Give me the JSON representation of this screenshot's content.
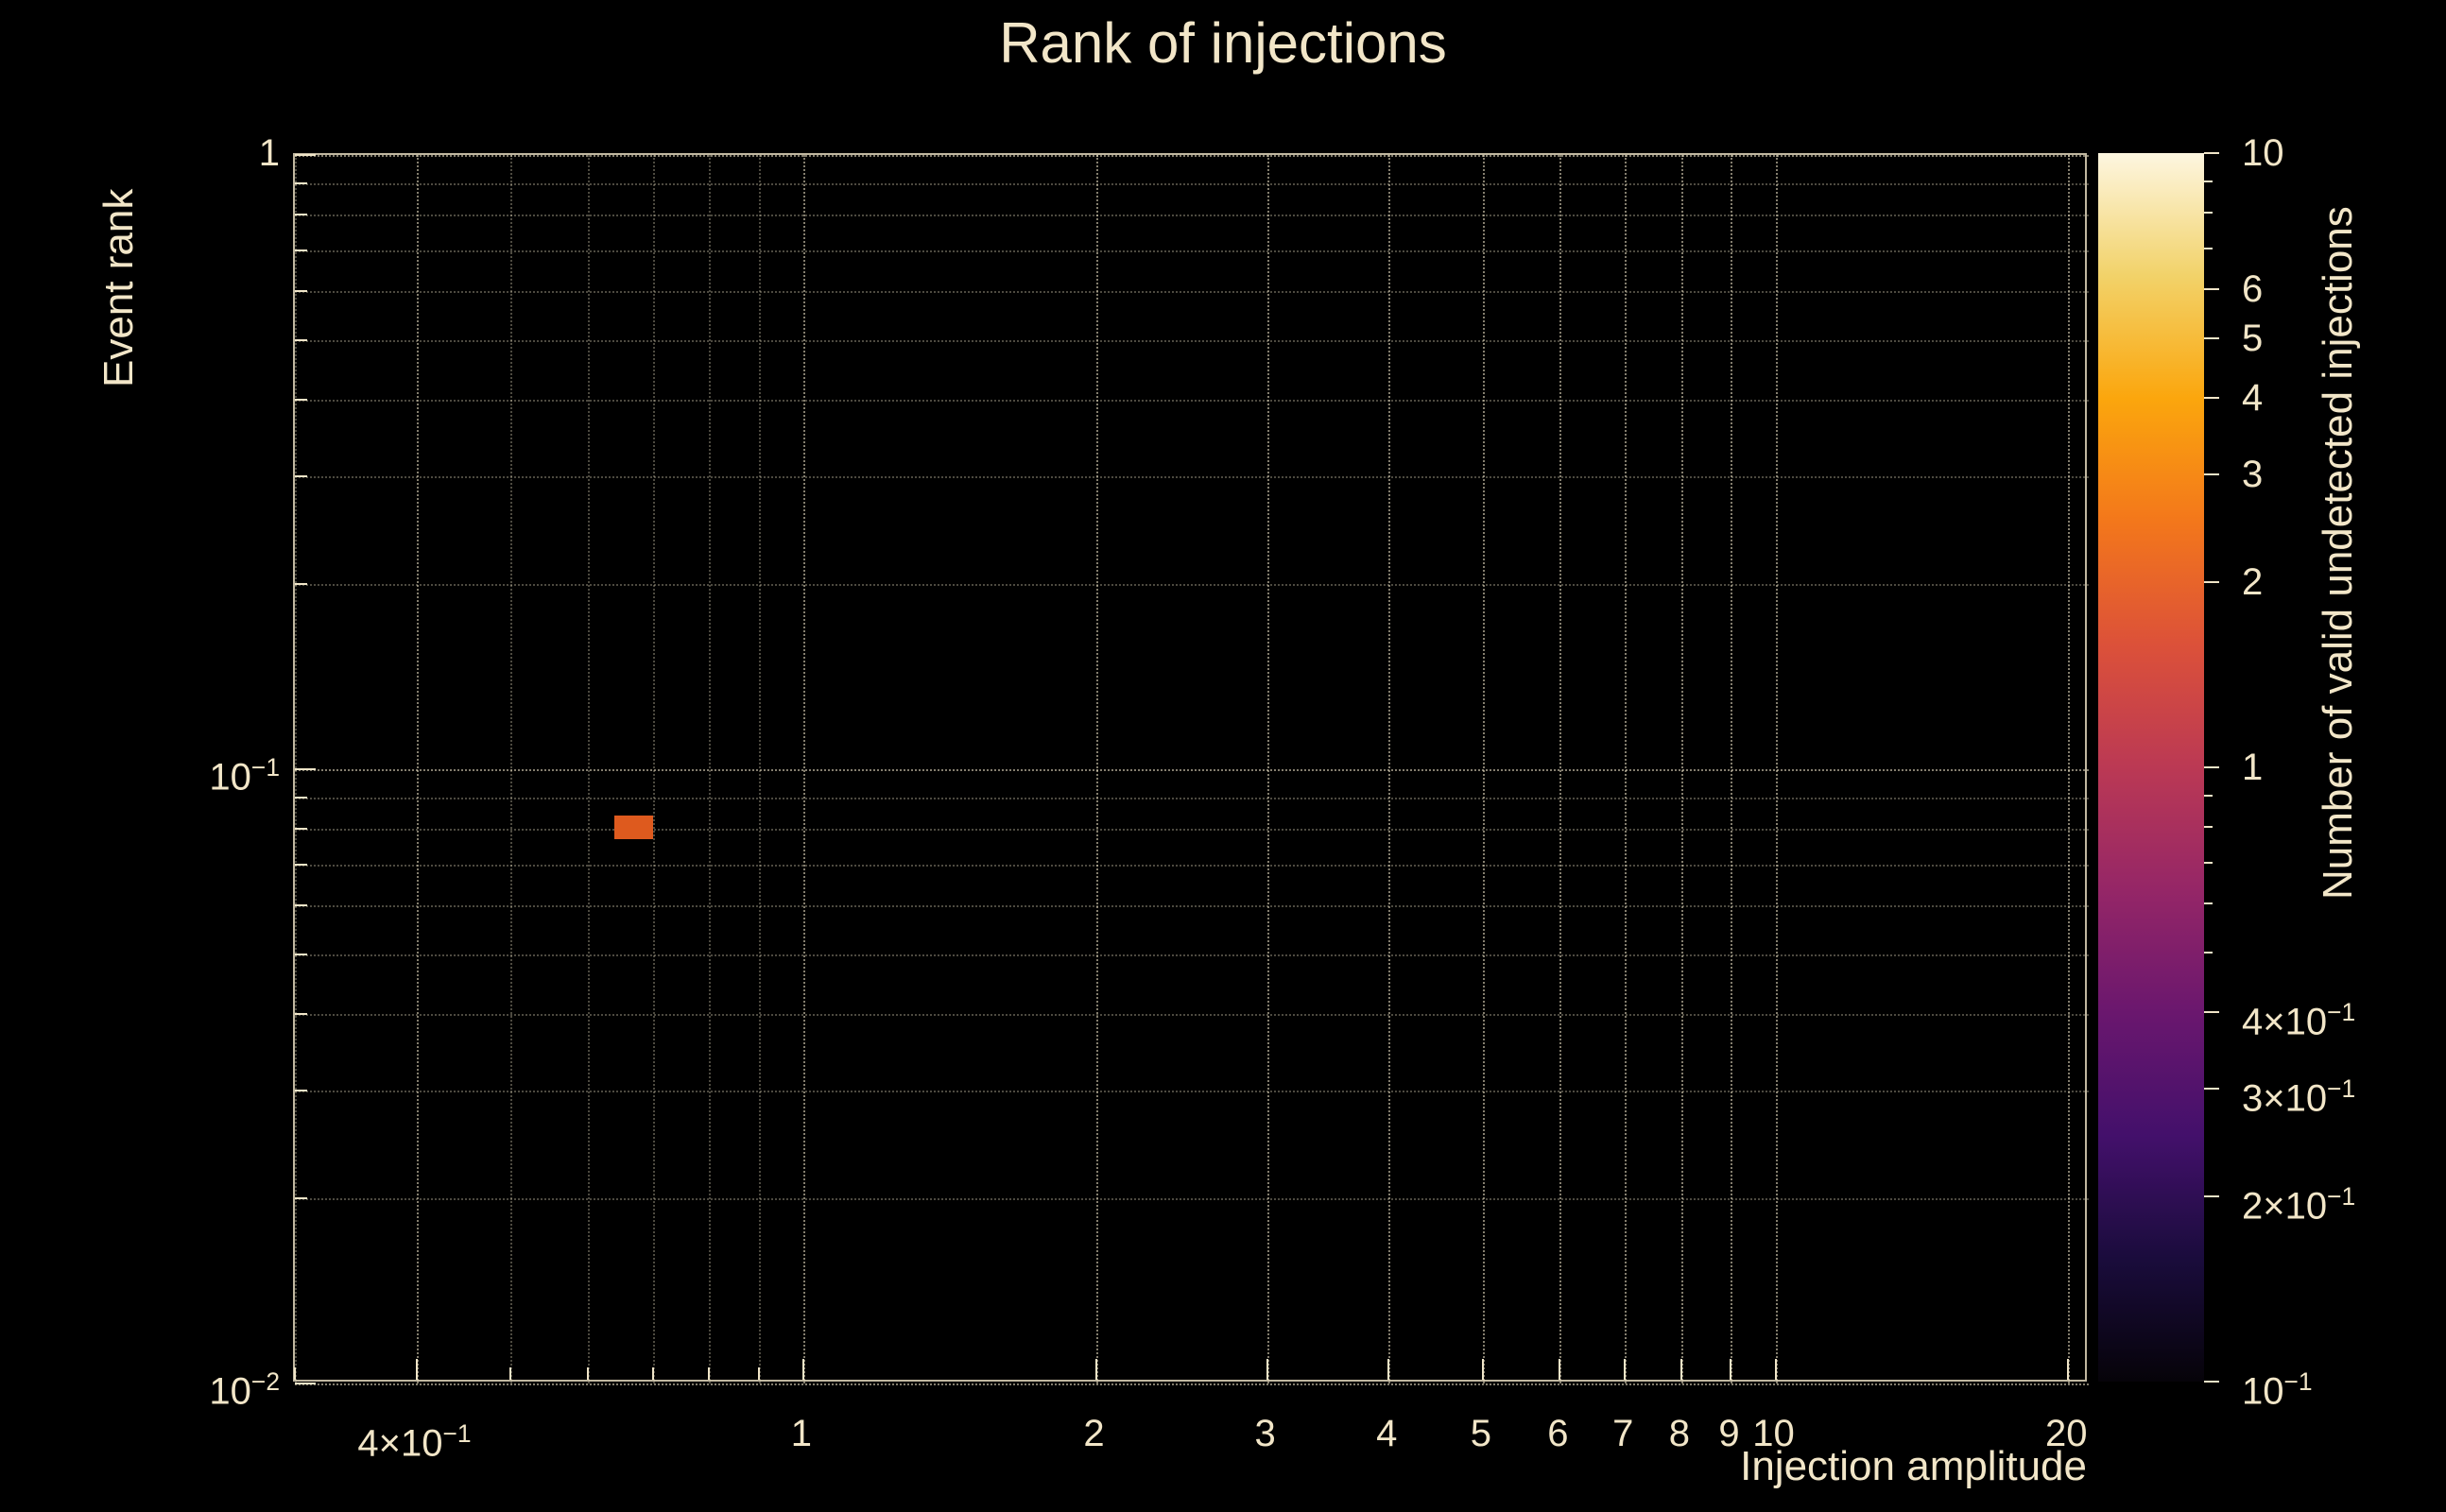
{
  "page": {
    "background": "#000000",
    "foreground": "#f2e6c8"
  },
  "chart_data": {
    "type": "heatmap",
    "title": "Rank of injections",
    "xlabel": "Injection amplitude",
    "ylabel": "Event rank",
    "colorbar_label": "Number of valid undetected injections",
    "xscale": "log",
    "yscale": "log",
    "zscale": "log",
    "xlim": [
      0.3,
      21
    ],
    "ylim": [
      0.01,
      1
    ],
    "zlim": [
      0.1,
      10
    ],
    "grid": true,
    "axis_color": "#f0e5c8",
    "grid_color_major": "rgba(240,229,200,0.55)",
    "grid_color_minor": "rgba(240,229,200,0.32)",
    "x_ticks": [
      {
        "v": 0.4,
        "t": "4×10",
        "sup": "−1"
      },
      {
        "v": 1,
        "t": "1"
      },
      {
        "v": 2,
        "t": "2"
      },
      {
        "v": 3,
        "t": "3"
      },
      {
        "v": 4,
        "t": "4"
      },
      {
        "v": 5,
        "t": "5"
      },
      {
        "v": 6,
        "t": "6"
      },
      {
        "v": 7,
        "t": "7"
      },
      {
        "v": 8,
        "t": "8"
      },
      {
        "v": 9,
        "t": "9"
      },
      {
        "v": 10,
        "t": "10"
      },
      {
        "v": 20,
        "t": "20"
      }
    ],
    "x_grid": [
      0.3,
      0.4,
      0.5,
      0.6,
      0.7,
      0.8,
      0.9,
      1,
      2,
      3,
      4,
      5,
      6,
      7,
      8,
      9,
      10,
      20
    ],
    "y_ticks": [
      {
        "v": 1,
        "t": "1"
      },
      {
        "v": 0.1,
        "t": "10",
        "sup": "−1"
      },
      {
        "v": 0.01,
        "t": "10",
        "sup": "−2"
      }
    ],
    "y_grid": [
      1,
      0.9,
      0.8,
      0.7,
      0.6,
      0.5,
      0.4,
      0.3,
      0.2,
      0.1,
      0.09,
      0.08,
      0.07,
      0.06,
      0.05,
      0.04,
      0.03,
      0.02,
      0.01
    ],
    "colorbar_ticks": [
      {
        "v": 10,
        "t": "10"
      },
      {
        "v": 6,
        "t": "6"
      },
      {
        "v": 5,
        "t": "5"
      },
      {
        "v": 4,
        "t": "4"
      },
      {
        "v": 3,
        "t": "3"
      },
      {
        "v": 2,
        "t": "2"
      },
      {
        "v": 1,
        "t": "1"
      },
      {
        "v": 0.4,
        "t": "4×10",
        "sup": "−1"
      },
      {
        "v": 0.3,
        "t": "3×10",
        "sup": "−1"
      },
      {
        "v": 0.2,
        "t": "2×10",
        "sup": "−1"
      },
      {
        "v": 0.1,
        "t": "10",
        "sup": "−1"
      }
    ],
    "colorbar_minor_ticks": [
      9,
      8,
      7,
      0.9,
      0.8,
      0.7,
      0.6,
      0.5
    ],
    "colormap_stops": [
      {
        "p": 0.0,
        "c": "#060309"
      },
      {
        "p": 0.1,
        "c": "#1a0c3c"
      },
      {
        "p": 0.2,
        "c": "#43106b"
      },
      {
        "p": 0.3,
        "c": "#6a176e"
      },
      {
        "p": 0.4,
        "c": "#952667"
      },
      {
        "p": 0.5,
        "c": "#bb3954"
      },
      {
        "p": 0.6,
        "c": "#dc5139"
      },
      {
        "p": 0.7,
        "c": "#f3771b"
      },
      {
        "p": 0.8,
        "c": "#fba60d"
      },
      {
        "p": 0.9,
        "c": "#f2d269"
      },
      {
        "p": 1.0,
        "c": "#fdf6e0"
      }
    ],
    "cells": [
      {
        "x_range": [
          0.64,
          0.7
        ],
        "y_range": [
          0.077,
          0.084
        ],
        "value": 1,
        "color": "#de5a1e"
      }
    ]
  }
}
